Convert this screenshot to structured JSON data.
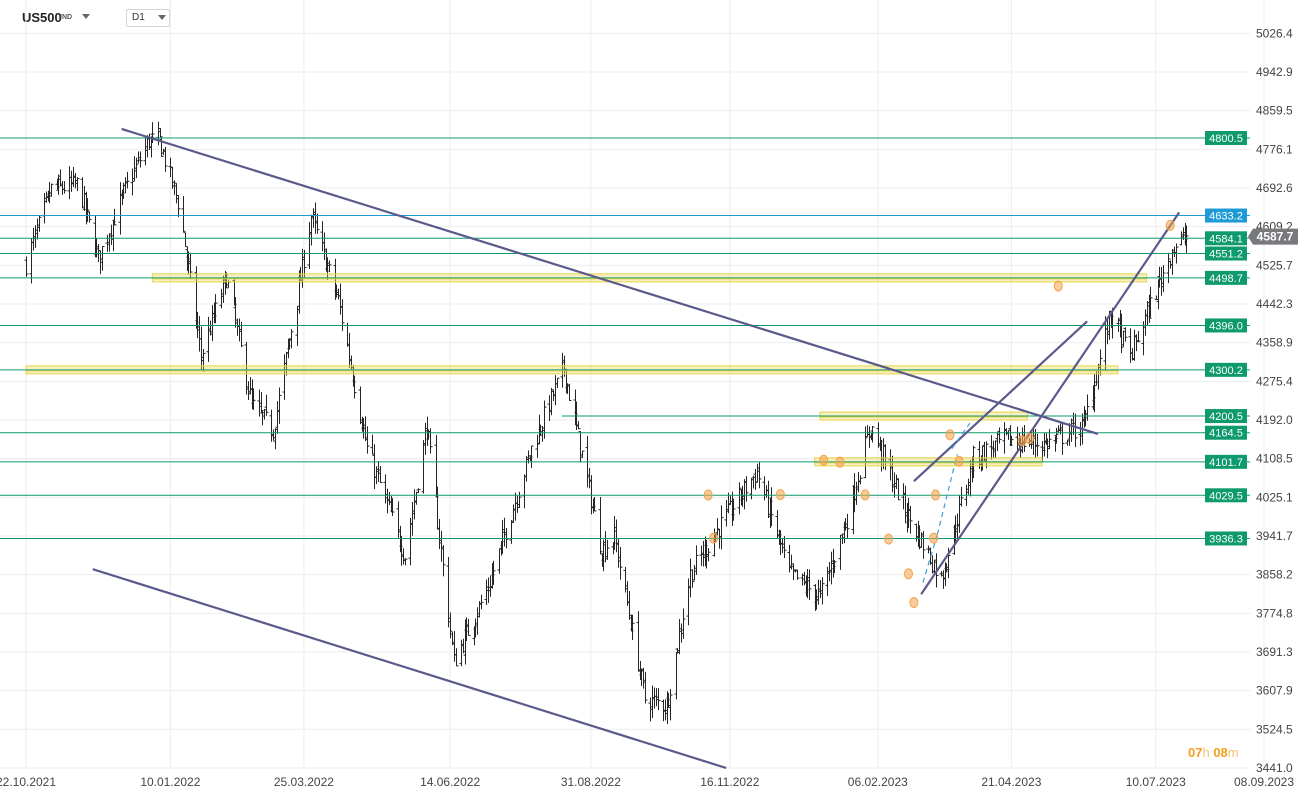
{
  "header": {
    "symbol": "US500",
    "symbol_type": "IND",
    "timeframe": "D1"
  },
  "countdown": {
    "hours": "07",
    "h_unit": "h",
    "minutes": "08",
    "m_unit": "m"
  },
  "colors": {
    "level": "#0f9a6e",
    "level_blue": "#1e9bd7",
    "price_tag": "#77797d",
    "trendline": "#5a5a8c",
    "zone": "#e8d44a",
    "candle": "#262626",
    "marker": "#f3a24a"
  },
  "chart_data": {
    "type": "candlestick",
    "x_ticks": [
      "22.10.2021",
      "10.01.2022",
      "25.03.2022",
      "14.06.2022",
      "31.08.2022",
      "16.11.2022",
      "06.02.2023",
      "21.04.2023",
      "10.07.2023",
      "08.09.2023"
    ],
    "y_ticks": [
      5026.4,
      4942.9,
      4859.5,
      4776.1,
      4692.6,
      4609.2,
      4525.7,
      4442.3,
      4358.9,
      4275.4,
      4192.0,
      4108.5,
      4025.1,
      3941.7,
      3858.2,
      3774.8,
      3691.3,
      3607.9,
      3524.5,
      3441.0
    ],
    "ylim": [
      3441.0,
      5068.1
    ],
    "current_price": 4587.7,
    "levels": [
      {
        "value": 4800.5,
        "color": "green"
      },
      {
        "value": 4633.2,
        "color": "blue"
      },
      {
        "value": 4584.1,
        "color": "green"
      },
      {
        "value": 4551.2,
        "color": "green"
      },
      {
        "value": 4498.7,
        "color": "green"
      },
      {
        "value": 4396.0,
        "color": "green"
      },
      {
        "value": 4300.2,
        "color": "green"
      },
      {
        "value": 4200.5,
        "color": "green"
      },
      {
        "value": 4164.5,
        "color": "green"
      },
      {
        "value": 4101.7,
        "color": "green"
      },
      {
        "value": 4029.5,
        "color": "green"
      },
      {
        "value": 3936.3,
        "color": "green"
      }
    ],
    "close_path": [
      [
        "2021-10-22",
        4530
      ],
      [
        "2021-11-05",
        4690
      ],
      [
        "2021-11-20",
        4700
      ],
      [
        "2021-12-01",
        4540
      ],
      [
        "2021-12-15",
        4680
      ],
      [
        "2021-12-29",
        4795
      ],
      [
        "2022-01-04",
        4793
      ],
      [
        "2022-01-15",
        4650
      ],
      [
        "2022-01-27",
        4330
      ],
      [
        "2022-02-10",
        4500
      ],
      [
        "2022-02-24",
        4225
      ],
      [
        "2022-03-08",
        4170
      ],
      [
        "2022-03-29",
        4630
      ],
      [
        "2022-04-13",
        4450
      ],
      [
        "2022-04-29",
        4130
      ],
      [
        "2022-05-20",
        3900
      ],
      [
        "2022-06-01",
        4180
      ],
      [
        "2022-06-16",
        3670
      ],
      [
        "2022-07-05",
        3830
      ],
      [
        "2022-07-29",
        4130
      ],
      [
        "2022-08-16",
        4305
      ],
      [
        "2022-09-06",
        3910
      ],
      [
        "2022-09-13",
        3940
      ],
      [
        "2022-09-30",
        3590
      ],
      [
        "2022-10-12",
        3577
      ],
      [
        "2022-10-25",
        3860
      ],
      [
        "2022-11-10",
        3960
      ],
      [
        "2022-12-01",
        4080
      ],
      [
        "2022-12-19",
        3860
      ],
      [
        "2023-01-05",
        3810
      ],
      [
        "2023-01-20",
        3980
      ],
      [
        "2023-02-02",
        4180
      ],
      [
        "2023-02-22",
        3990
      ],
      [
        "2023-03-13",
        3850
      ],
      [
        "2023-03-31",
        4110
      ],
      [
        "2023-04-18",
        4150
      ],
      [
        "2023-05-10",
        4140
      ],
      [
        "2023-05-31",
        4180
      ],
      [
        "2023-06-15",
        4420
      ],
      [
        "2023-06-26",
        4330
      ],
      [
        "2023-07-19",
        4560
      ],
      [
        "2023-07-27",
        4587.7
      ]
    ],
    "trendlines": [
      {
        "from": [
          "2021-12-14",
          4820
        ],
        "to": [
          "2023-06-08",
          4162
        ]
      },
      {
        "from": [
          "2021-11-28",
          3870
        ],
        "to": [
          "2022-11-14",
          3441
        ]
      },
      {
        "from": [
          "2023-02-26",
          4060
        ],
        "to": [
          "2023-06-02",
          4405
        ]
      },
      {
        "from": [
          "2023-03-02",
          3816
        ],
        "to": [
          "2023-07-23",
          4640
        ]
      },
      {
        "from": [
          "2023-03-03",
          3841
        ],
        "to": [
          "2023-03-11",
          3945
        ],
        "dashed": true
      },
      {
        "from": [
          "2023-03-11",
          3945
        ],
        "to": [
          "2023-03-22",
          4118
        ],
        "dashed": true
      },
      {
        "from": [
          "2023-03-19",
          4130
        ],
        "to": [
          "2023-03-29",
          4185
        ],
        "dashed": true
      }
    ],
    "zones": [
      {
        "from": "2021-12-31",
        "to": "2023-07-05",
        "value": 4498.7
      },
      {
        "from": "2021-10-22",
        "to": "2023-06-19",
        "value": 4300.2
      },
      {
        "from": "2023-01-05",
        "to": "2023-04-30",
        "value": 4200.5
      },
      {
        "from": "2023-01-02",
        "to": "2023-05-08",
        "value": 4101.7
      }
    ],
    "markers": [
      [
        "2022-11-04",
        4030
      ],
      [
        "2022-11-07",
        3937
      ],
      [
        "2022-12-14",
        4031
      ],
      [
        "2023-01-07",
        4105
      ],
      [
        "2023-01-16",
        4101
      ],
      [
        "2023-01-30",
        4030
      ],
      [
        "2023-02-12",
        3935
      ],
      [
        "2023-02-23",
        3860
      ],
      [
        "2023-02-26",
        3798
      ],
      [
        "2023-03-09",
        3937
      ],
      [
        "2023-03-10",
        4030
      ],
      [
        "2023-03-18",
        4160
      ],
      [
        "2023-03-23",
        4103
      ],
      [
        "2023-04-27",
        4147
      ],
      [
        "2023-05-01",
        4152
      ],
      [
        "2023-05-17",
        4481
      ],
      [
        "2023-07-18",
        4612
      ]
    ]
  }
}
